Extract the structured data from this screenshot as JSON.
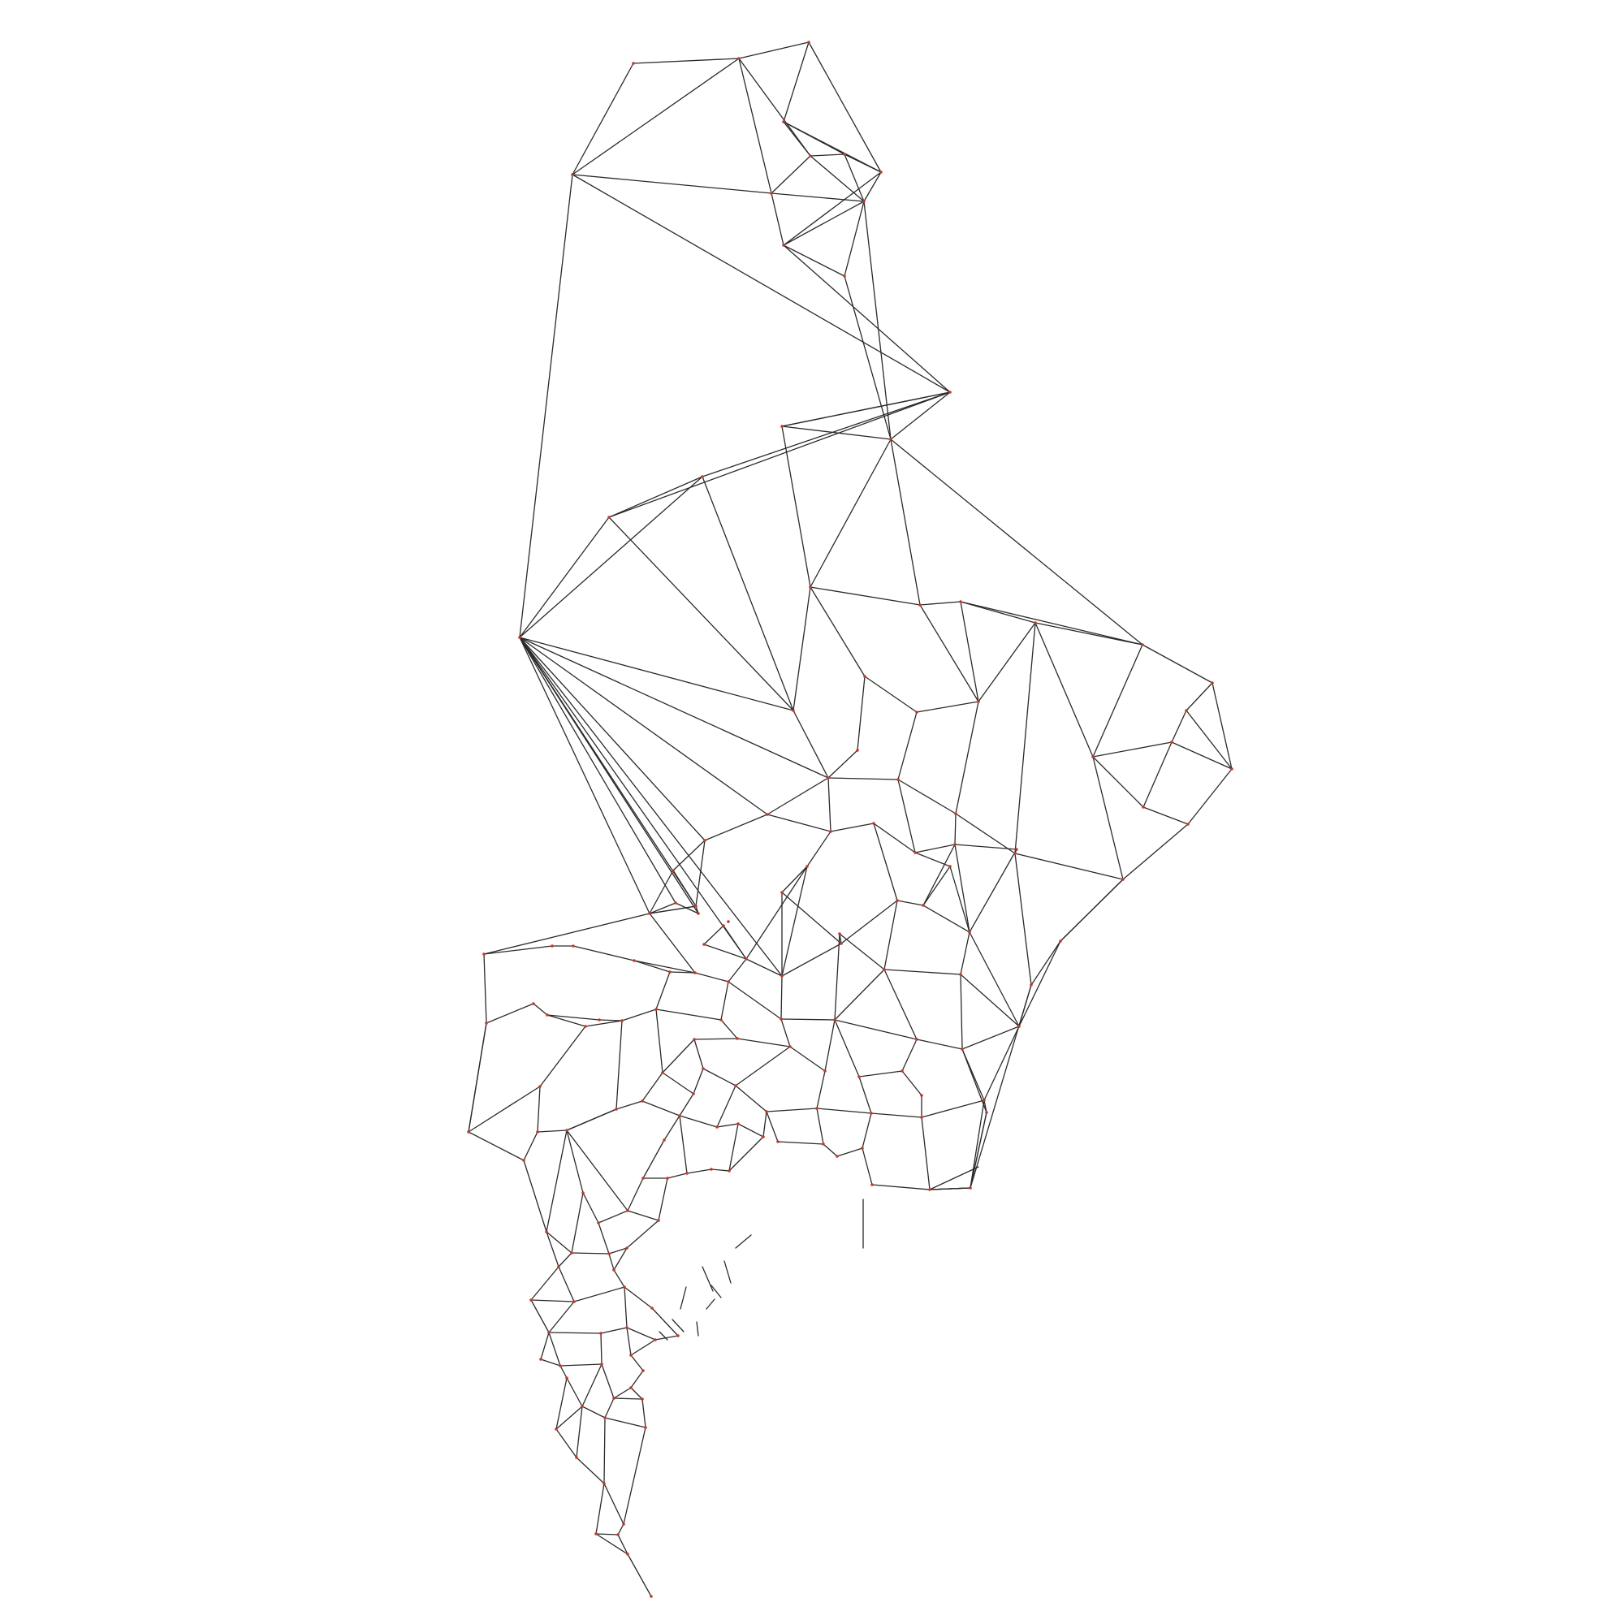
{
  "diagram": {
    "type": "triangulated-mesh-graph",
    "edge_color": "#2a2a2a",
    "node_color": "#c0392b",
    "background": "#ffffff"
  }
}
